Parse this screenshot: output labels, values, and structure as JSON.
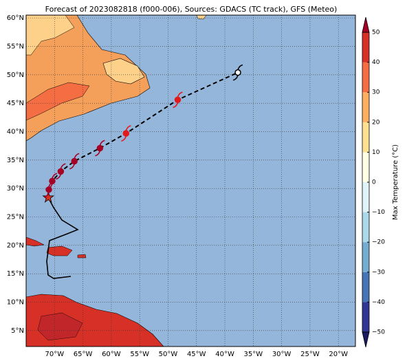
{
  "map": {
    "title": "Forecast of 2023082818 (f000-006), Sources: GDACS (TC track), GFS (Meteo)",
    "lonlim": [
      -75,
      -17
    ],
    "latlim": [
      2.2,
      60.5
    ],
    "lonticks": [
      {
        "value": -70,
        "label": "70°W"
      },
      {
        "value": -65,
        "label": "65°W"
      },
      {
        "value": -60,
        "label": "60°W"
      },
      {
        "value": -55,
        "label": "55°W"
      },
      {
        "value": -50,
        "label": "50°W"
      },
      {
        "value": -45,
        "label": "45°W"
      },
      {
        "value": -40,
        "label": "40°W"
      },
      {
        "value": -35,
        "label": "35°W"
      },
      {
        "value": -30,
        "label": "30°W"
      },
      {
        "value": -25,
        "label": "25°W"
      },
      {
        "value": -20,
        "label": "20°W"
      }
    ],
    "latticks": [
      {
        "value": 5,
        "label": "5°N"
      },
      {
        "value": 10,
        "label": "10°N"
      },
      {
        "value": 15,
        "label": "15°N"
      },
      {
        "value": 20,
        "label": "20°N"
      },
      {
        "value": 25,
        "label": "25°N"
      },
      {
        "value": 30,
        "label": "30°N"
      },
      {
        "value": 35,
        "label": "35°N"
      },
      {
        "value": 40,
        "label": "40°N"
      },
      {
        "value": 45,
        "label": "45°N"
      },
      {
        "value": 50,
        "label": "50°N"
      },
      {
        "value": 55,
        "label": "55°N"
      },
      {
        "value": 60,
        "label": "60°N"
      }
    ],
    "grid": true,
    "track": {
      "lon": [
        -71.1,
        -71.0,
        -70.4,
        -68.9,
        -66.5,
        -62.0,
        -57.4,
        -48.3,
        -37.7
      ],
      "lat": [
        28.4,
        29.8,
        31.3,
        33.0,
        34.8,
        37.1,
        39.7,
        45.6,
        50.4
      ],
      "colors": [
        "#d7301f",
        "#a50026",
        "#a50026",
        "#a50026",
        "#a50026",
        "#a50026",
        "#e31a1c",
        "#e31a1c",
        "#000000"
      ]
    },
    "colorbar": {
      "label": "Max Temperature (°C)",
      "lim": [
        -50,
        50
      ],
      "ticks": [
        {
          "value": -50,
          "label": "−50"
        },
        {
          "value": -40,
          "label": "−40"
        },
        {
          "value": -30,
          "label": "−30"
        },
        {
          "value": -20,
          "label": "−20"
        },
        {
          "value": -10,
          "label": "−10"
        },
        0,
        10,
        20,
        30,
        40,
        50
      ],
      "colors": [
        "#313695",
        "#4575b4",
        "#74add1",
        "#abd9e9",
        "#e0f3f8",
        "#ffffe5",
        "#fee090",
        "#fdae61",
        "#f46d43",
        "#d73027"
      ],
      "under": "#1a1a60",
      "over": "#a50026"
    }
  }
}
